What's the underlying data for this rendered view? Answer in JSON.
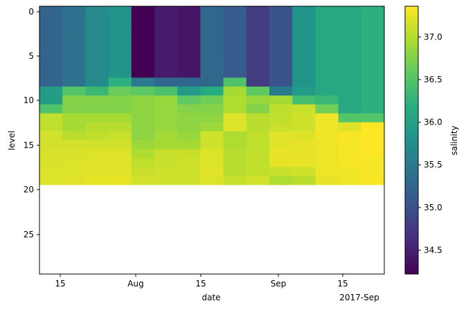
{
  "chart_data": {
    "type": "heatmap",
    "title": "",
    "xlabel": "date",
    "ylabel": "level",
    "x_tick_labels": [
      "15",
      "Aug",
      "15",
      "Sep",
      "15"
    ],
    "x_offset_label": "2017-Sep",
    "y_tick_labels": [
      "0",
      "5",
      "10",
      "15",
      "20",
      "25"
    ],
    "y_range": [
      -0.5,
      29.5
    ],
    "colorbar": {
      "label": "salinity",
      "range": [
        34.22,
        37.36
      ],
      "tick_labels": [
        "34.5",
        "35.0",
        "35.5",
        "36.0",
        "36.5",
        "37.0"
      ],
      "tick_values": [
        34.5,
        35.0,
        35.5,
        36.0,
        36.5,
        37.0
      ],
      "colormap": "viridis"
    },
    "columns": [
      {
        "index": 0,
        "values": [
          35.22,
          35.22,
          35.22,
          35.22,
          35.22,
          35.22,
          35.22,
          35.22,
          35.22,
          35.95,
          35.95,
          36.47,
          37.06,
          37.06,
          37.15,
          37.15,
          37.18,
          37.18,
          37.2,
          37.2
        ]
      },
      {
        "index": 1,
        "values": [
          35.4,
          35.4,
          35.4,
          35.4,
          35.4,
          35.4,
          35.4,
          35.4,
          35.4,
          36.5,
          36.76,
          36.76,
          36.93,
          36.93,
          37.02,
          37.15,
          37.18,
          37.2,
          37.2,
          37.22
        ]
      },
      {
        "index": 2,
        "values": [
          35.7,
          35.7,
          35.7,
          35.7,
          35.7,
          35.7,
          35.7,
          35.7,
          35.7,
          36.32,
          36.76,
          36.76,
          36.93,
          37.02,
          37.06,
          37.15,
          37.2,
          37.22,
          37.22,
          37.25
        ]
      },
      {
        "index": 3,
        "values": [
          35.84,
          35.84,
          35.84,
          35.84,
          35.84,
          35.84,
          35.84,
          35.84,
          36.21,
          36.63,
          36.76,
          36.76,
          36.93,
          37.02,
          37.1,
          37.15,
          37.2,
          37.22,
          37.22,
          37.25
        ]
      },
      {
        "index": 4,
        "values": [
          34.22,
          34.22,
          34.22,
          34.22,
          34.22,
          34.22,
          34.22,
          34.22,
          35.5,
          36.58,
          36.82,
          36.82,
          36.82,
          36.82,
          36.82,
          36.89,
          36.97,
          37.06,
          37.1,
          37.15
        ]
      },
      {
        "index": 5,
        "values": [
          34.45,
          34.45,
          34.45,
          34.45,
          34.45,
          34.45,
          34.45,
          34.45,
          35.28,
          36.45,
          36.86,
          36.86,
          36.86,
          36.86,
          36.93,
          36.93,
          37.1,
          37.1,
          37.13,
          37.13
        ]
      },
      {
        "index": 6,
        "values": [
          34.4,
          34.4,
          34.4,
          34.4,
          34.4,
          34.4,
          34.4,
          34.4,
          35.28,
          35.93,
          36.58,
          36.76,
          36.82,
          36.82,
          36.86,
          36.93,
          37.1,
          37.13,
          37.13,
          37.13
        ]
      },
      {
        "index": 7,
        "values": [
          35.28,
          35.28,
          35.28,
          35.28,
          35.28,
          35.28,
          35.28,
          35.28,
          35.28,
          36.15,
          36.67,
          36.76,
          36.82,
          36.89,
          37.13,
          37.13,
          37.2,
          37.2,
          37.22,
          37.2
        ]
      },
      {
        "index": 8,
        "values": [
          35.12,
          35.12,
          35.12,
          35.12,
          35.12,
          35.12,
          35.12,
          35.12,
          36.47,
          36.93,
          36.97,
          36.97,
          37.2,
          37.2,
          36.97,
          36.97,
          37.02,
          37.02,
          37.02,
          37.1
        ]
      },
      {
        "index": 9,
        "values": [
          34.77,
          34.77,
          34.77,
          34.77,
          34.77,
          34.77,
          34.77,
          34.77,
          34.77,
          36.58,
          36.86,
          36.76,
          37.02,
          37.02,
          37.06,
          37.06,
          37.06,
          37.06,
          37.06,
          37.15
        ]
      },
      {
        "index": 10,
        "values": [
          35.03,
          35.03,
          35.03,
          35.03,
          35.03,
          35.03,
          35.03,
          35.03,
          35.03,
          35.5,
          36.93,
          37.06,
          37.06,
          37.1,
          37.22,
          37.22,
          37.25,
          37.25,
          37.1,
          36.97
        ]
      },
      {
        "index": 11,
        "values": [
          35.84,
          35.84,
          35.84,
          35.84,
          35.84,
          35.84,
          35.84,
          35.84,
          35.84,
          35.93,
          36.4,
          37.1,
          37.13,
          37.13,
          37.2,
          37.25,
          37.25,
          37.25,
          37.13,
          37.02
        ]
      },
      {
        "index": 12,
        "values": [
          36.1,
          36.1,
          36.1,
          36.1,
          36.1,
          36.1,
          36.1,
          36.1,
          36.1,
          36.1,
          36.32,
          36.67,
          37.3,
          37.3,
          37.3,
          37.28,
          37.28,
          37.28,
          37.28,
          37.25
        ]
      },
      {
        "index": 13,
        "values": [
          36.1,
          36.1,
          36.1,
          36.1,
          36.1,
          36.1,
          36.1,
          36.1,
          36.1,
          36.1,
          36.1,
          36.1,
          36.5,
          37.2,
          37.33,
          37.33,
          37.33,
          37.33,
          37.3,
          37.3
        ]
      },
      {
        "index": 14,
        "values": [
          36.21,
          36.21,
          36.21,
          36.21,
          36.21,
          36.21,
          36.21,
          36.21,
          36.21,
          36.21,
          36.21,
          36.21,
          36.5,
          37.36,
          37.36,
          37.36,
          37.36,
          37.33,
          37.33,
          37.33
        ]
      }
    ]
  }
}
